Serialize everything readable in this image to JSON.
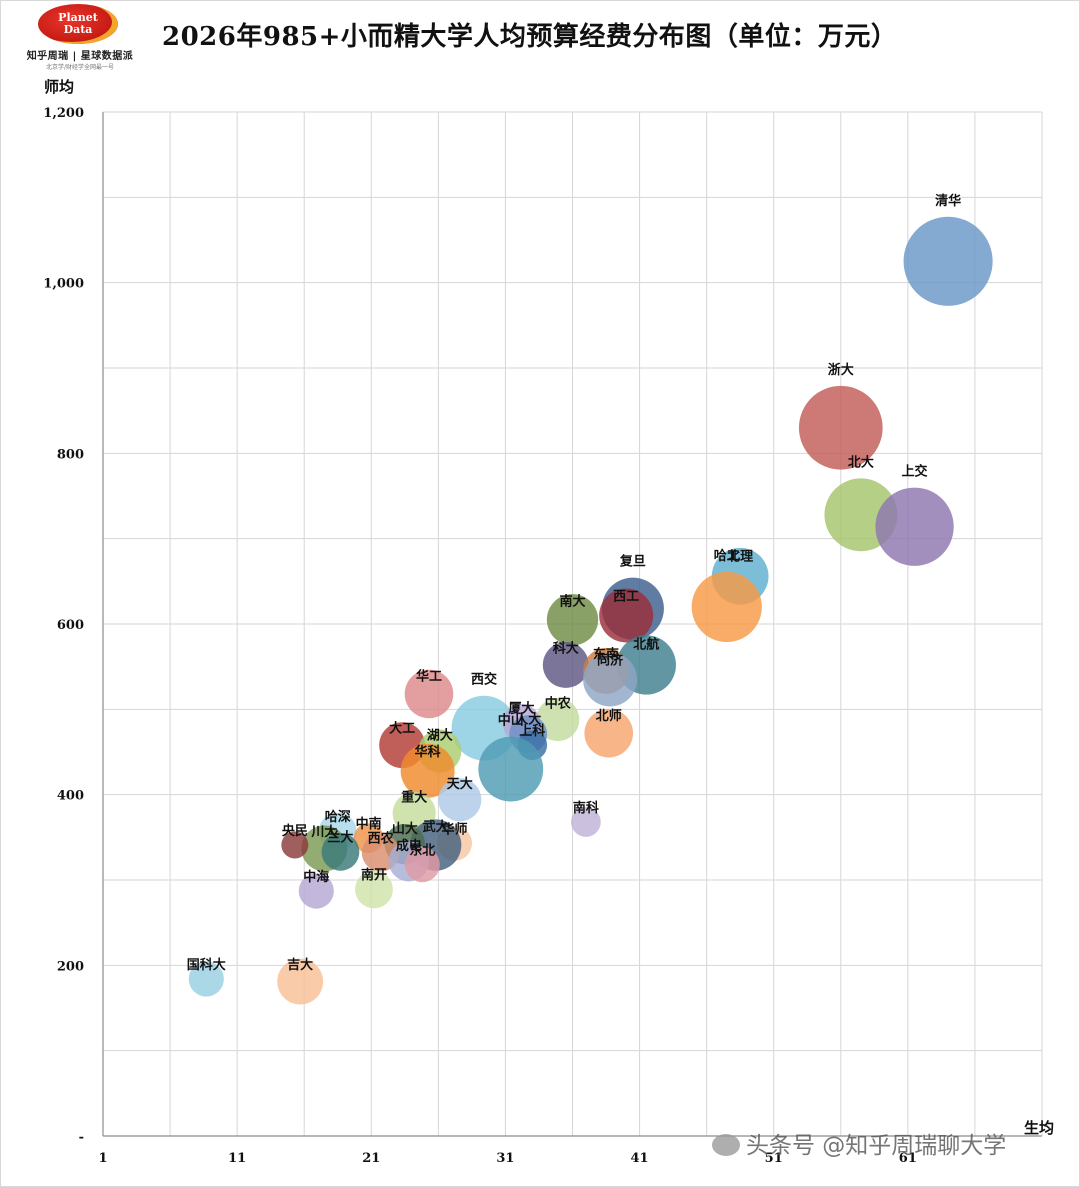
{
  "logo": {
    "line1": "Planet",
    "line2": "Data",
    "subtitle": "知乎周瑞 | 星球数据派",
    "tagline": "北京学/财经学全网最一号"
  },
  "title": "2026年985+小而精大学人均预算经费分布图（单位：万元）",
  "watermark": "头条号 @知乎周瑞聊大学",
  "chart_data": {
    "type": "scatter",
    "subtype": "bubble",
    "title": "2026年985+小而精大学人均预算经费分布图（单位：万元）",
    "xlabel": "生均",
    "ylabel": "师均",
    "xlim": [
      1,
      71
    ],
    "ylim": [
      0,
      1200
    ],
    "x_ticks": [
      "1",
      "11",
      "21",
      "31",
      "41",
      "51",
      "61"
    ],
    "y_ticks": [
      "-",
      "200",
      "400",
      "600",
      "800",
      "1,000",
      "1,200"
    ],
    "grid": true,
    "legend": "none",
    "points": [
      {
        "label": "清华",
        "x": 64,
        "y": 1025,
        "size": 3.3,
        "color": "#6a97c8"
      },
      {
        "label": "浙大",
        "x": 56,
        "y": 830,
        "size": 3.1,
        "color": "#c25c58"
      },
      {
        "label": "北大",
        "x": 57.5,
        "y": 728,
        "size": 2.7,
        "color": "#a5c46b"
      },
      {
        "label": "上交",
        "x": 61.5,
        "y": 714,
        "size": 2.9,
        "color": "#8e76b0"
      },
      {
        "label": "北理",
        "x": 48.5,
        "y": 656,
        "size": 2.1,
        "color": "#5fb0cf"
      },
      {
        "label": "哈工",
        "x": 47.5,
        "y": 620,
        "size": 2.6,
        "color": "#f79a45"
      },
      {
        "label": "复旦",
        "x": 40.5,
        "y": 618,
        "size": 2.3,
        "color": "#3d5f8e"
      },
      {
        "label": "西工",
        "x": 40,
        "y": 610,
        "size": 2.0,
        "color": "#9a2f3b"
      },
      {
        "label": "南大",
        "x": 36,
        "y": 605,
        "size": 1.9,
        "color": "#6f8b44"
      },
      {
        "label": "北航",
        "x": 41.5,
        "y": 552,
        "size": 2.2,
        "color": "#3f7f8f"
      },
      {
        "label": "科大",
        "x": 35.5,
        "y": 552,
        "size": 1.7,
        "color": "#5e5782"
      },
      {
        "label": "东南",
        "x": 38.5,
        "y": 545,
        "size": 1.7,
        "color": "#cf7b3f"
      },
      {
        "label": "同济",
        "x": 38.8,
        "y": 535,
        "size": 2.0,
        "color": "#8ea6c6"
      },
      {
        "label": "中农",
        "x": 34.9,
        "y": 488,
        "size": 1.6,
        "color": "#c2dba0"
      },
      {
        "label": "华工",
        "x": 25.3,
        "y": 518,
        "size": 1.8,
        "color": "#dd8a8a"
      },
      {
        "label": "西交",
        "x": 29.4,
        "y": 478,
        "size": 2.4,
        "color": "#88cce0"
      },
      {
        "label": "厦大",
        "x": 32.2,
        "y": 484,
        "size": 1.4,
        "color": "#b7a6d6"
      },
      {
        "label": "人大",
        "x": 32.7,
        "y": 471,
        "size": 1.4,
        "color": "#6e8fc4"
      },
      {
        "label": "北师",
        "x": 38.7,
        "y": 472,
        "size": 1.8,
        "color": "#f5a56e"
      },
      {
        "label": "大工",
        "x": 23.3,
        "y": 458,
        "size": 1.7,
        "color": "#b23b36"
      },
      {
        "label": "湖大",
        "x": 26.1,
        "y": 451,
        "size": 1.6,
        "color": "#a9cd72"
      },
      {
        "label": "上科",
        "x": 33.0,
        "y": 458,
        "size": 1.1,
        "color": "#3b6fa5"
      },
      {
        "label": "中山",
        "x": 31.4,
        "y": 430,
        "size": 2.4,
        "color": "#4f9bb3"
      },
      {
        "label": "华科",
        "x": 25.2,
        "y": 428,
        "size": 2.0,
        "color": "#f08a2c"
      },
      {
        "label": "天大",
        "x": 27.6,
        "y": 394,
        "size": 1.6,
        "color": "#aec9e6"
      },
      {
        "label": "南科",
        "x": 37.0,
        "y": 368,
        "size": 1.1,
        "color": "#bfb2d6"
      },
      {
        "label": "重大",
        "x": 24.2,
        "y": 378,
        "size": 1.6,
        "color": "#c6dd9c"
      },
      {
        "label": "哈深",
        "x": 18.5,
        "y": 357,
        "size": 1.4,
        "color": "#a9d8ea"
      },
      {
        "label": "中南",
        "x": 20.8,
        "y": 349,
        "size": 1.1,
        "color": "#ef9448"
      },
      {
        "label": "华师",
        "x": 27.2,
        "y": 343,
        "size": 1.3,
        "color": "#f7c7a2"
      },
      {
        "label": "武大",
        "x": 25.8,
        "y": 341,
        "size": 1.9,
        "color": "#44607f"
      },
      {
        "label": "山大",
        "x": 23.5,
        "y": 342,
        "size": 1.5,
        "color": "#4b6b4e"
      },
      {
        "label": "川大",
        "x": 17.5,
        "y": 337,
        "size": 1.7,
        "color": "#7a9a52"
      },
      {
        "label": "央民",
        "x": 15.3,
        "y": 341,
        "size": 1.0,
        "color": "#8b3b3b"
      },
      {
        "label": "兰大",
        "x": 18.7,
        "y": 333,
        "size": 1.4,
        "color": "#3a7a7a"
      },
      {
        "label": "西农",
        "x": 21.7,
        "y": 332,
        "size": 1.4,
        "color": "#d98f6f"
      },
      {
        "label": "成电",
        "x": 23.8,
        "y": 322,
        "size": 1.5,
        "color": "#a7afd6"
      },
      {
        "label": "东北",
        "x": 24.8,
        "y": 318,
        "size": 1.3,
        "color": "#e09aa6"
      },
      {
        "label": "中海",
        "x": 16.9,
        "y": 287,
        "size": 1.3,
        "color": "#b6a7d3"
      },
      {
        "label": "南开",
        "x": 21.2,
        "y": 289,
        "size": 1.4,
        "color": "#cfe3a9"
      },
      {
        "label": "国科大",
        "x": 8.7,
        "y": 184,
        "size": 1.3,
        "color": "#97d0e0"
      },
      {
        "label": "吉大",
        "x": 15.7,
        "y": 181,
        "size": 1.7,
        "color": "#f8bf95"
      }
    ]
  }
}
